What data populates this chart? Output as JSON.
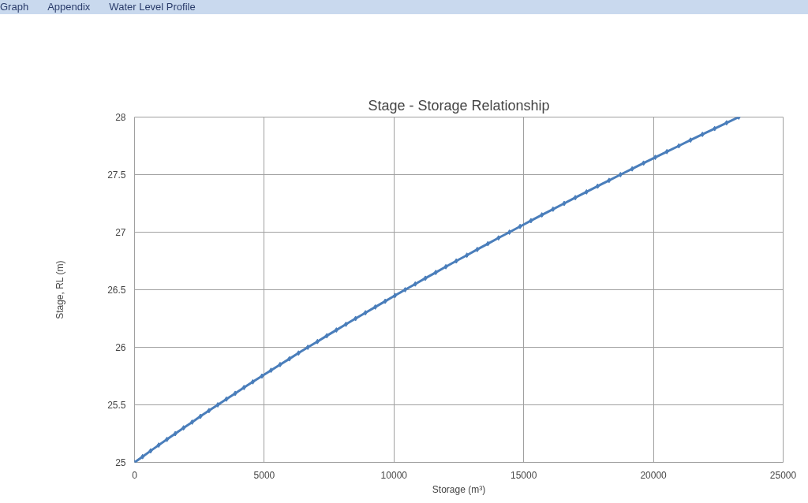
{
  "chart_data": {
    "type": "line",
    "title": "Stage - Storage Relationship",
    "xlabel": "Storage (m³)",
    "ylabel": "Stage, RL (m)",
    "annotations": [
      "Graph",
      "Appendix",
      "Water Level Profile"
    ],
    "x": [
      0,
      310,
      620,
      930,
      1250,
      1570,
      1890,
      2220,
      2540,
      2870,
      3210,
      3540,
      3880,
      4220,
      4560,
      4910,
      5260,
      5610,
      5970,
      6320,
      6680,
      7050,
      7410,
      7780,
      8150,
      8520,
      8900,
      9280,
      9660,
      10040,
      10430,
      10820,
      11210,
      11610,
      12000,
      12400,
      12810,
      13210,
      13620,
      14030,
      14450,
      14860,
      15280,
      15700,
      16130,
      16560,
      16990,
      17420,
      17850,
      18290,
      18730,
      19180,
      19620,
      20070,
      20520,
      20980,
      21430,
      21890,
      22360,
      22820,
      23290
    ],
    "series": [
      {
        "color": "#4a7ebb",
        "values": [
          25,
          25.05,
          25.1,
          25.15,
          25.2,
          25.25,
          25.3,
          25.35,
          25.4,
          25.45,
          25.5,
          25.55,
          25.6,
          25.65,
          25.7,
          25.75,
          25.8,
          25.85,
          25.9,
          25.95,
          26,
          26.05,
          26.1,
          26.15,
          26.2,
          26.25,
          26.3,
          26.35,
          26.4,
          26.45,
          26.5,
          26.55,
          26.6,
          26.65,
          26.7,
          26.75,
          26.8,
          26.85,
          26.9,
          26.95,
          27,
          27.05,
          27.1,
          27.15,
          27.2,
          27.25,
          27.3,
          27.35,
          27.4,
          27.45,
          27.5,
          27.55,
          27.6,
          27.65,
          27.7,
          27.75,
          27.8,
          27.85,
          27.9,
          27.95,
          28
        ]
      }
    ],
    "xlim": [
      0,
      25000
    ],
    "xticks": [
      0,
      5000,
      10000,
      15000,
      20000,
      25000
    ],
    "ylim": [
      25,
      28
    ],
    "yticks": [
      25,
      25.5,
      26,
      26.5,
      27,
      27.5,
      28
    ],
    "grid": true,
    "marker": "diamond",
    "line_style": "solid"
  }
}
